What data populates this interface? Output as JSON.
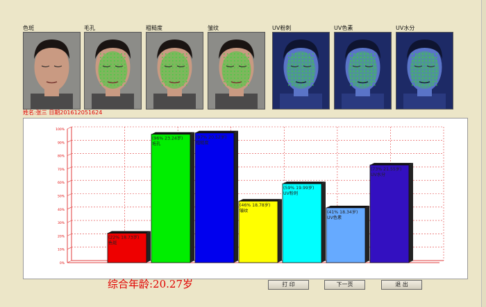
{
  "thumbnails": [
    {
      "label": "色斑",
      "kind": "normal"
    },
    {
      "label": "毛孔",
      "kind": "normal"
    },
    {
      "label": "粗糙度",
      "kind": "normal"
    },
    {
      "label": "皱纹",
      "kind": "normal"
    },
    {
      "label": "UV粉刺",
      "kind": "uv"
    },
    {
      "label": "UV色素",
      "kind": "uv"
    },
    {
      "label": "UV水分",
      "kind": "uv"
    }
  ],
  "patient_info": "姓名:张三 日期201612051624",
  "summary": "综合年龄:20.27岁",
  "buttons": {
    "print": "打 印",
    "next": "下一页",
    "exit": "退 出"
  },
  "colors": {
    "accent_red": "#e00000",
    "background": "#ece6c8",
    "grid": "#e23c3c"
  },
  "chart_data": {
    "type": "bar",
    "categories": [
      "色斑",
      "毛孔",
      "粗糙度",
      "皱纹",
      "UV粉刺",
      "UV色素",
      "UV水分"
    ],
    "values": [
      22,
      96,
      97,
      46,
      59,
      41,
      73
    ],
    "labels": [
      "(22% 18.73岁)",
      "(96% 23.24岁)",
      "(97% 20.52岁)",
      "(46% 18.78岁)",
      "(59% 19.99岁)",
      "(41% 18.34岁)",
      "(73% 21.55岁)"
    ],
    "bar_colors": [
      "#ee0000",
      "#00ee00",
      "#0000ee",
      "#ffff00",
      "#00ffff",
      "#66aaff",
      "#3310c0"
    ],
    "y_ticks": [
      "0%",
      "10%",
      "20%",
      "30%",
      "40%",
      "50%",
      "60%",
      "70%",
      "80%",
      "90%",
      "100%"
    ],
    "ylim": [
      0,
      100
    ],
    "grid": true
  }
}
